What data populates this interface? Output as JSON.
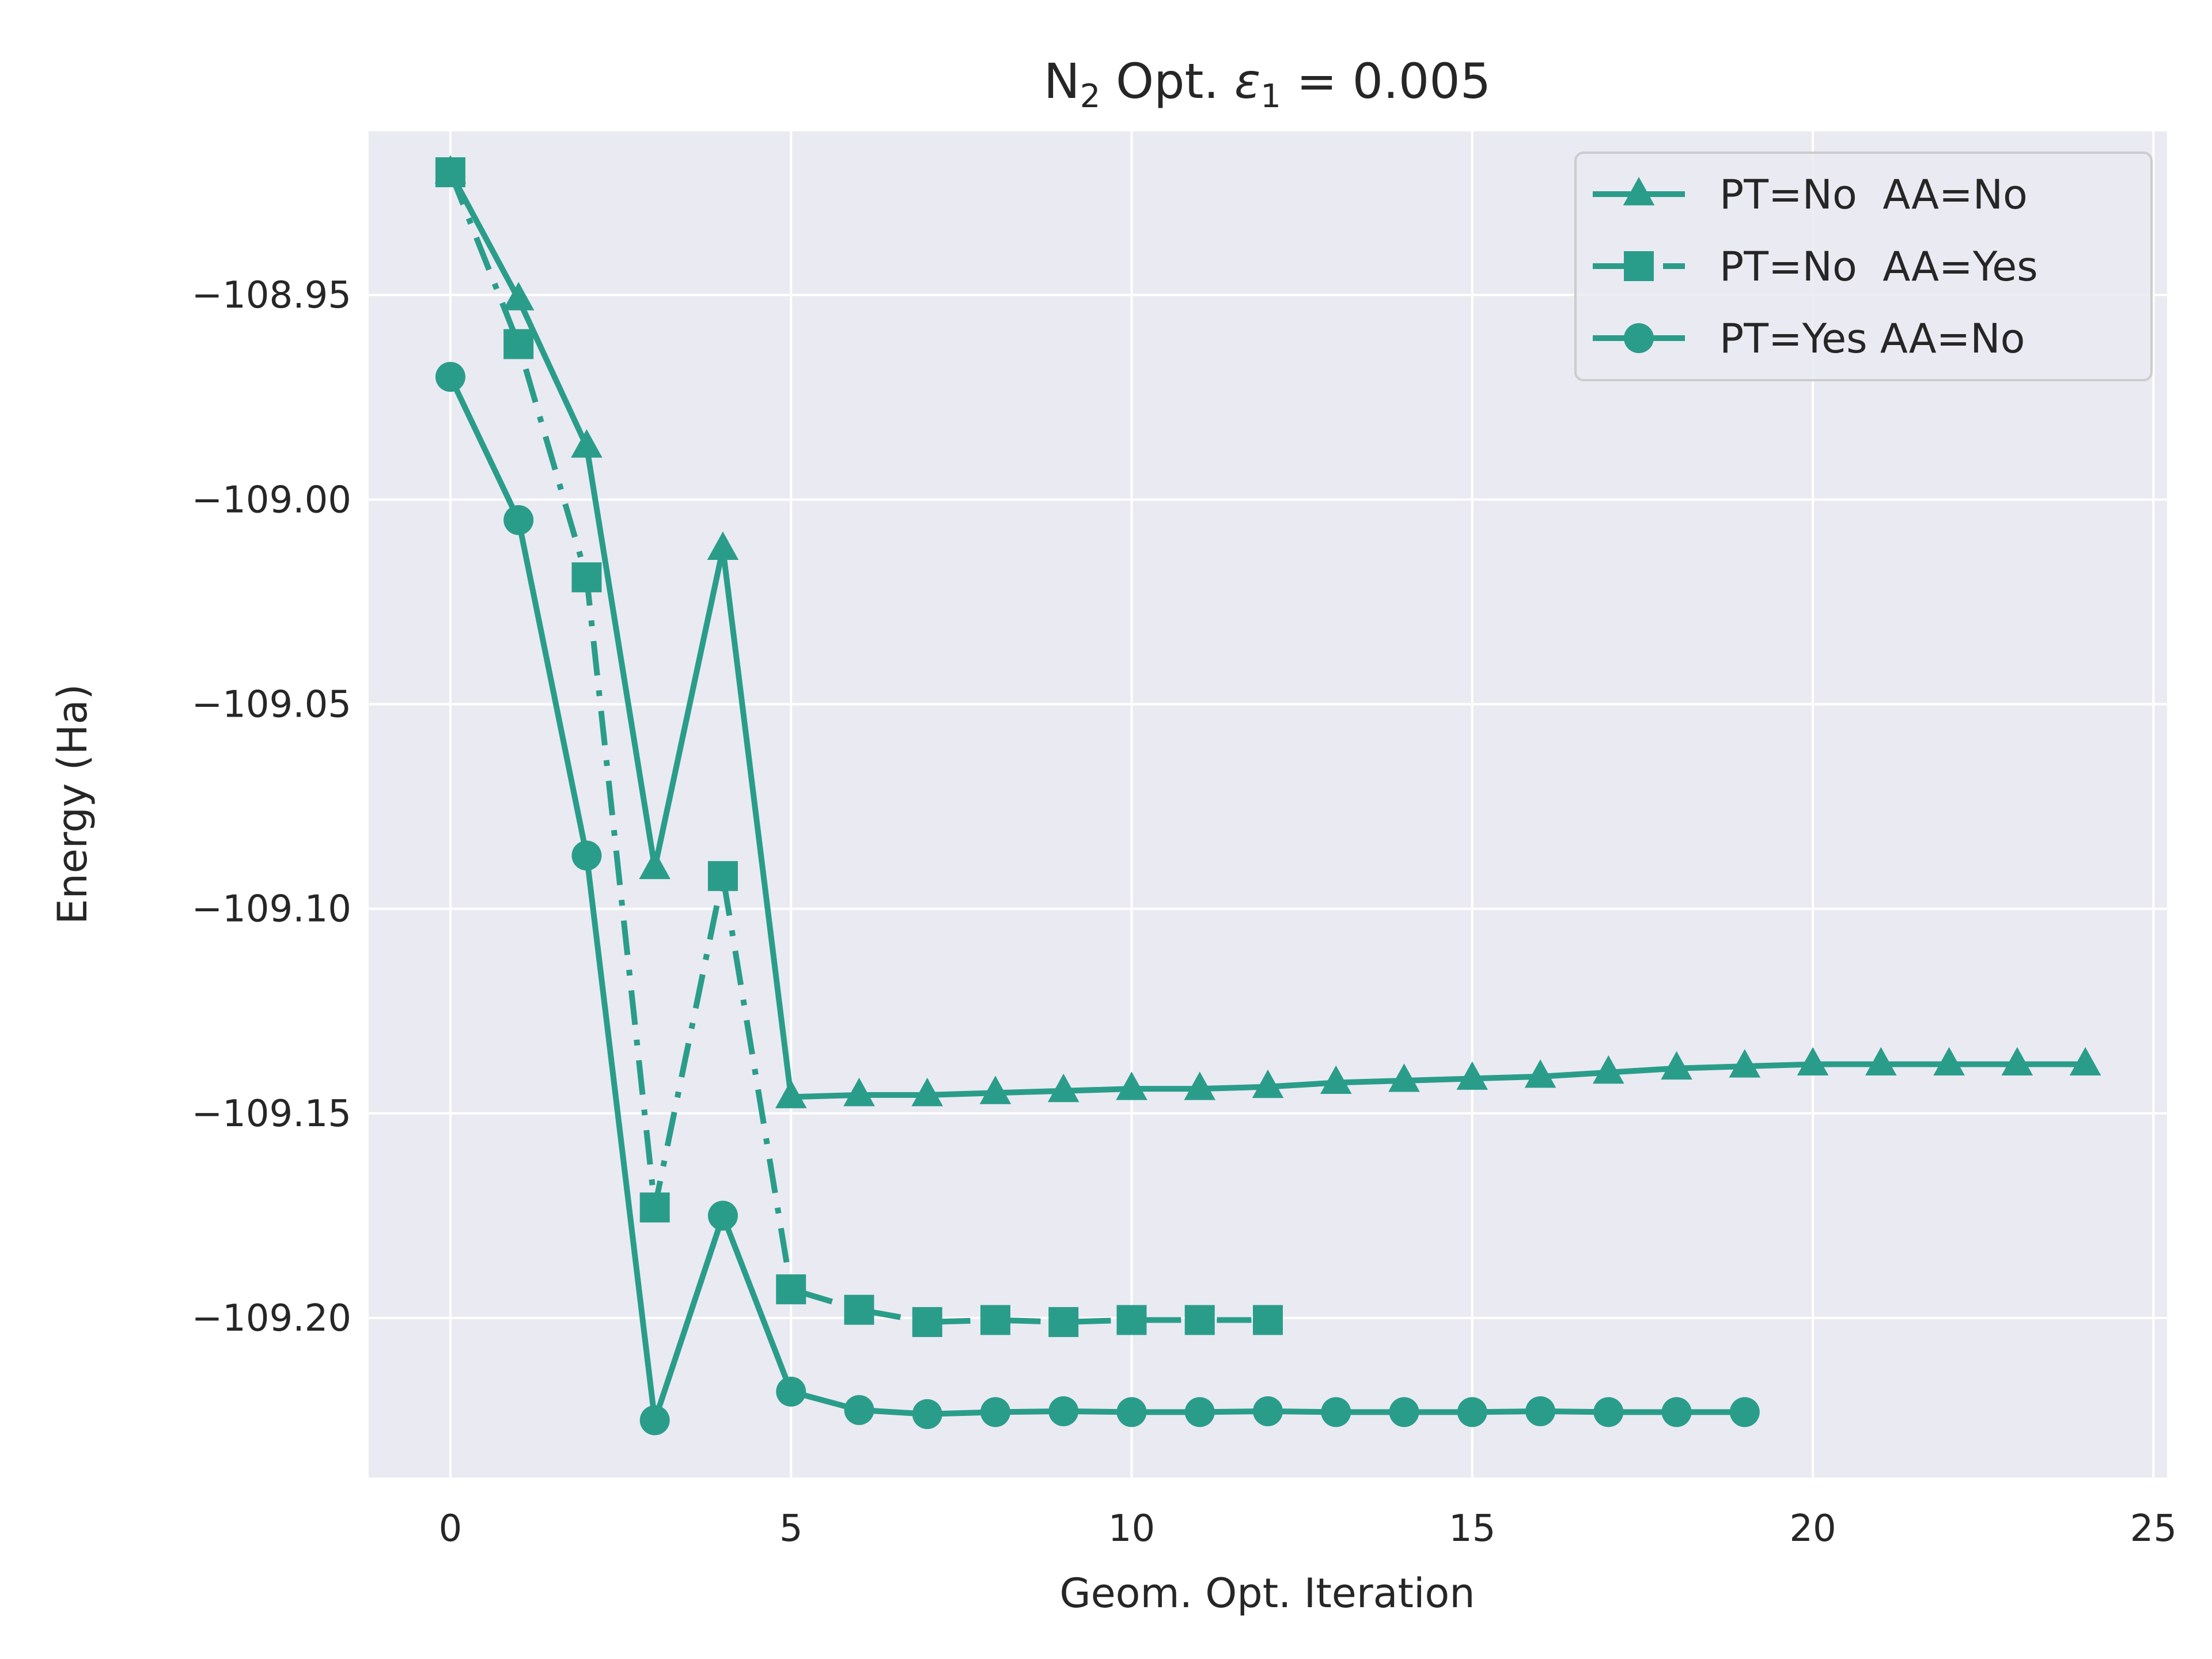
{
  "chart_data": {
    "type": "line",
    "title": {
      "prefix": "N",
      "sub1": "2",
      "middle": " Opt. ",
      "symbol": "ε",
      "sub2": "1",
      "suffix": " = 0.005"
    },
    "xlabel": "Geom. Opt. Iteration",
    "ylabel": "Energy (Ha)",
    "xlim": [
      -1.2,
      25.2
    ],
    "ylim": [
      -109.239,
      -108.91
    ],
    "xticks": [
      0,
      5,
      10,
      15,
      20,
      25
    ],
    "xtick_labels": [
      "0",
      "5",
      "10",
      "15",
      "20",
      "25"
    ],
    "yticks": [
      -109.2,
      -109.15,
      -109.1,
      -109.05,
      -109.0,
      -108.95
    ],
    "ytick_labels": [
      "−109.20",
      "−109.15",
      "−109.10",
      "−109.05",
      "−109.00",
      "−108.95"
    ],
    "grid": true,
    "legend_position": "top-right",
    "color": "#2a9d8a",
    "background": "#eaeaf2",
    "series": [
      {
        "name": "PT=No  AA=No",
        "marker": "triangle",
        "linestyle": "solid",
        "x": [
          0,
          1,
          2,
          3,
          4,
          5,
          6,
          7,
          8,
          9,
          10,
          11,
          12,
          13,
          14,
          15,
          16,
          17,
          18,
          19,
          20,
          21,
          22,
          23,
          24
        ],
        "y": [
          -108.92,
          -108.951,
          -108.987,
          -109.09,
          -109.012,
          -109.146,
          -109.1455,
          -109.1455,
          -109.145,
          -109.1445,
          -109.144,
          -109.144,
          -109.1435,
          -109.1425,
          -109.142,
          -109.1415,
          -109.141,
          -109.14,
          -109.139,
          -109.1385,
          -109.138,
          -109.138,
          -109.138,
          -109.138,
          -109.138
        ]
      },
      {
        "name": "PT=No  AA=Yes",
        "marker": "square",
        "linestyle": "dashdot",
        "x": [
          0,
          1,
          2,
          3,
          4,
          5,
          6,
          7,
          8,
          9,
          10,
          11,
          12
        ],
        "y": [
          -108.92,
          -108.962,
          -109.019,
          -109.173,
          -109.092,
          -109.193,
          -109.198,
          -109.201,
          -109.2005,
          -109.201,
          -109.2005,
          -109.2005,
          -109.2005
        ]
      },
      {
        "name": "PT=Yes AA=No",
        "marker": "circle",
        "linestyle": "solid",
        "x": [
          0,
          1,
          2,
          3,
          4,
          5,
          6,
          7,
          8,
          9,
          10,
          11,
          12,
          13,
          14,
          15,
          16,
          17,
          18,
          19
        ],
        "y": [
          -108.97,
          -109.005,
          -109.087,
          -109.225,
          -109.175,
          -109.218,
          -109.2225,
          -109.2235,
          -109.223,
          -109.2228,
          -109.223,
          -109.223,
          -109.2228,
          -109.223,
          -109.223,
          -109.223,
          -109.2228,
          -109.223,
          -109.223,
          -109.223
        ]
      }
    ]
  }
}
